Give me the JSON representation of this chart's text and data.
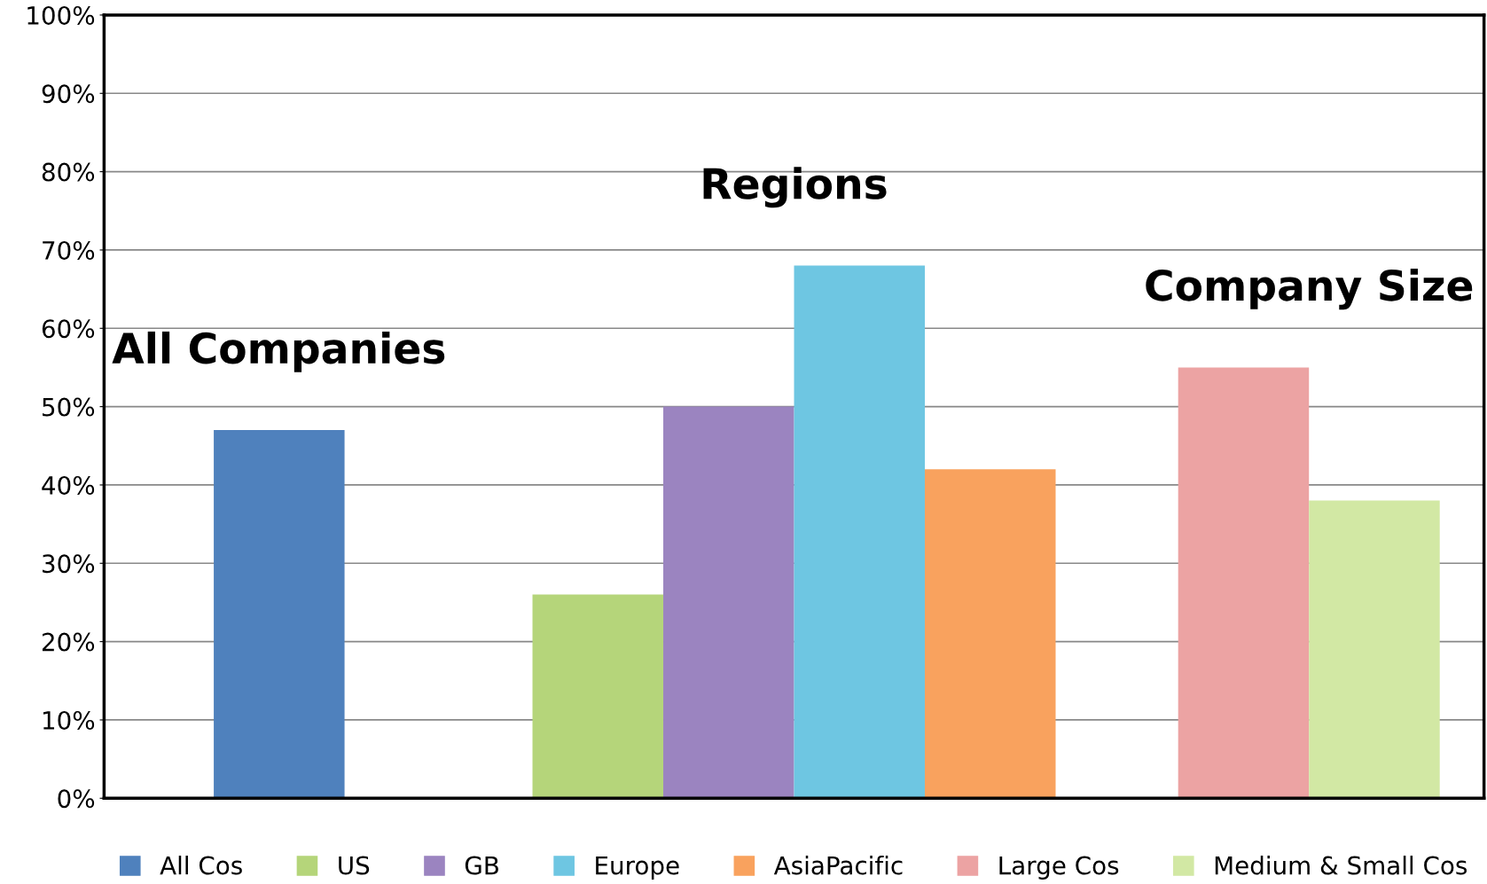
{
  "chart_data": {
    "type": "bar",
    "categories": [
      null,
      null,
      null
    ],
    "series": [
      {
        "name": "All Cos",
        "color": "#4f81bd",
        "values": [
          47,
          null,
          null
        ]
      },
      {
        "name": "US",
        "color": "#b5d57a",
        "values": [
          null,
          26,
          null
        ]
      },
      {
        "name": "GB",
        "color": "#9b84c0",
        "values": [
          null,
          50,
          null
        ]
      },
      {
        "name": "Europe",
        "color": "#6ec6e2",
        "values": [
          null,
          68,
          null
        ]
      },
      {
        "name": "AsiaPacific",
        "color": "#f9a25e",
        "values": [
          null,
          42,
          null
        ]
      },
      {
        "name": "Large Cos",
        "color": "#eca3a3",
        "values": [
          null,
          null,
          55
        ]
      },
      {
        "name": "Medium & Small Cos",
        "color": "#d2e8a4",
        "values": [
          null,
          null,
          38
        ]
      }
    ],
    "annotations": [
      "All Companies",
      "Regions",
      "Company Size"
    ],
    "ylim": [
      0,
      100
    ],
    "yticks": [
      {
        "value": 0,
        "label": "0%"
      },
      {
        "value": 10,
        "label": "10%"
      },
      {
        "value": 20,
        "label": "20%"
      },
      {
        "value": 30,
        "label": "30%"
      },
      {
        "value": 40,
        "label": "40%"
      },
      {
        "value": 50,
        "label": "50%"
      },
      {
        "value": 60,
        "label": "60%"
      },
      {
        "value": 70,
        "label": "70%"
      },
      {
        "value": 80,
        "label": "80%"
      },
      {
        "value": 90,
        "label": "90%"
      },
      {
        "value": 100,
        "label": "100%"
      }
    ],
    "grid": "y",
    "legend": "bottom"
  }
}
